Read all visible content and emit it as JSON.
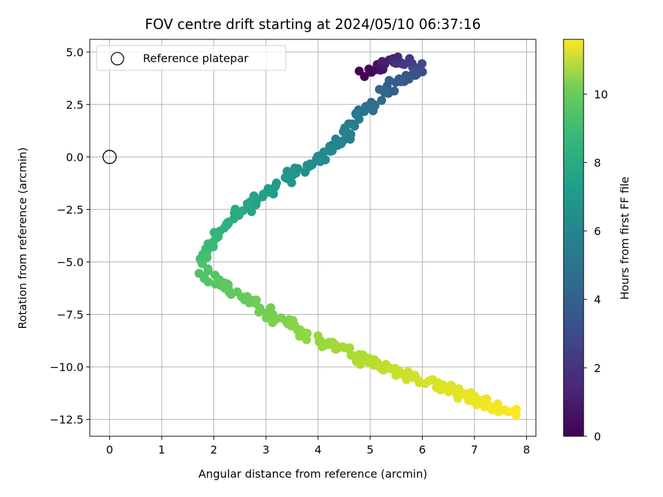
{
  "chart_data": {
    "type": "scatter",
    "title": "FOV centre drift starting at 2024/05/10 06:37:16",
    "xlabel": "Angular distance from reference (arcmin)",
    "ylabel": "Rotation from reference (arcmin)",
    "colorbar_label": "Hours from first FF file",
    "xlim": [
      -0.38,
      8.18
    ],
    "ylim": [
      -13.3,
      5.6
    ],
    "x_ticks": [
      0,
      1,
      2,
      3,
      4,
      5,
      6,
      7,
      8
    ],
    "x_tick_labels": [
      "0",
      "1",
      "2",
      "3",
      "4",
      "5",
      "6",
      "7",
      "8"
    ],
    "y_ticks": [
      5.0,
      2.5,
      0.0,
      -2.5,
      -5.0,
      -7.5,
      -10.0,
      -12.5
    ],
    "y_tick_labels": [
      "5.0",
      "2.5",
      "0.0",
      "−2.5",
      "−5.0",
      "−7.5",
      "−10.0",
      "−12.5"
    ],
    "colorbar_range": [
      0,
      11.6
    ],
    "colorbar_ticks": [
      0,
      2,
      4,
      6,
      8,
      10
    ],
    "colorbar_tick_labels": [
      "0",
      "2",
      "4",
      "6",
      "8",
      "10"
    ],
    "colormap": "viridis",
    "grid": true,
    "legend": {
      "placement": "upper-left",
      "entries": [
        {
          "label": "Reference platepar",
          "marker": "open-circle",
          "x": 0,
          "y": 0
        }
      ]
    },
    "path_keypoints": [
      {
        "t": 0.0,
        "x": 4.9,
        "y": 3.9
      },
      {
        "t": 1.0,
        "x": 5.35,
        "y": 4.6
      },
      {
        "t": 2.0,
        "x": 5.75,
        "y": 4.5
      },
      {
        "t": 2.7,
        "x": 6.0,
        "y": 4.2
      },
      {
        "t": 3.4,
        "x": 5.45,
        "y": 3.5
      },
      {
        "t": 4.2,
        "x": 5.0,
        "y": 2.4
      },
      {
        "t": 5.0,
        "x": 4.6,
        "y": 1.2
      },
      {
        "t": 5.5,
        "x": 4.05,
        "y": 0.0
      },
      {
        "t": 6.0,
        "x": 3.5,
        "y": -0.8
      },
      {
        "t": 6.5,
        "x": 3.0,
        "y": -1.8
      },
      {
        "t": 7.0,
        "x": 2.5,
        "y": -2.6
      },
      {
        "t": 7.5,
        "x": 2.1,
        "y": -3.6
      },
      {
        "t": 8.0,
        "x": 1.75,
        "y": -4.6
      },
      {
        "t": 8.4,
        "x": 1.85,
        "y": -5.6
      },
      {
        "t": 8.8,
        "x": 2.5,
        "y": -6.6
      },
      {
        "t": 9.3,
        "x": 3.3,
        "y": -7.8
      },
      {
        "t": 9.8,
        "x": 4.1,
        "y": -8.8
      },
      {
        "t": 10.3,
        "x": 5.0,
        "y": -9.8
      },
      {
        "t": 10.8,
        "x": 5.9,
        "y": -10.5
      },
      {
        "t": 11.6,
        "x": 7.8,
        "y": -12.3
      }
    ]
  }
}
